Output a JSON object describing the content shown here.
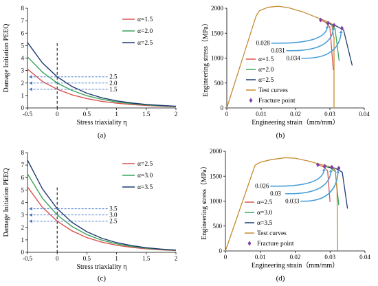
{
  "chart_data": [
    {
      "panel_label": "(a)",
      "type": "line",
      "xlabel": "Stress triaxiality η",
      "ylabel": "Damage Initiation PEEQ",
      "xlim": [
        -0.5,
        2
      ],
      "ylim": [
        0,
        8
      ],
      "xticks": [
        "-0.5",
        "0",
        "0.5",
        "1",
        "1.5",
        "2"
      ],
      "yticks": [
        "0",
        "1",
        "2",
        "3",
        "4",
        "5",
        "6",
        "7",
        "8"
      ],
      "x": [
        -0.5,
        -0.25,
        0,
        0.25,
        0.5,
        0.75,
        1.0,
        1.25,
        1.5,
        1.75,
        2.0
      ],
      "series": [
        {
          "name": "α=1.5",
          "color": "#d9534f",
          "values": [
            3.12,
            2.13,
            1.5,
            1.05,
            0.75,
            0.53,
            0.38,
            0.27,
            0.2,
            0.14,
            0.1
          ]
        },
        {
          "name": "α=2.0",
          "color": "#3aa35a",
          "values": [
            4.1,
            2.88,
            2.0,
            1.4,
            0.98,
            0.69,
            0.48,
            0.34,
            0.24,
            0.17,
            0.12
          ]
        },
        {
          "name": "α=2.5",
          "color": "#1f3a6e",
          "values": [
            5.25,
            3.62,
            2.5,
            1.72,
            1.18,
            0.82,
            0.57,
            0.4,
            0.28,
            0.2,
            0.14
          ]
        }
      ],
      "markers": [
        {
          "label": "2.5",
          "y": 2.5
        },
        {
          "label": "2.0",
          "y": 2.0
        },
        {
          "label": "1.5",
          "y": 1.5
        }
      ],
      "legend": "top-right",
      "vline_x": 0
    },
    {
      "panel_label": "(b)",
      "type": "line",
      "xlabel": "Engineering strain（mm/mm）",
      "ylabel": "Engineering stress（MPa）",
      "xlim": [
        0,
        0.04
      ],
      "ylim": [
        0,
        2000
      ],
      "xticks": [
        "0",
        "0.01",
        "0.02",
        "0.03",
        "0.04"
      ],
      "yticks": [
        "0",
        "500",
        "1000",
        "1500",
        "2000"
      ],
      "series": [
        {
          "name": "α=1.5",
          "color": "#d9534f",
          "points": [
            [
              0.0273,
              1765
            ],
            [
              0.0287,
              1720
            ],
            [
              0.03,
              1620
            ],
            [
              0.031,
              760
            ]
          ]
        },
        {
          "name": "α=2.0",
          "color": "#3aa35a",
          "points": [
            [
              0.0286,
              1725
            ],
            [
              0.03,
              1690
            ],
            [
              0.0315,
              1590
            ],
            [
              0.0327,
              940
            ]
          ]
        },
        {
          "name": "α=2.5",
          "color": "#1f3a6e",
          "points": [
            [
              0.03,
              1690
            ],
            [
              0.032,
              1640
            ],
            [
              0.034,
              1560
            ],
            [
              0.0365,
              850
            ]
          ]
        },
        {
          "name": "Test curves",
          "color": "#c58a2e",
          "points": [
            [
              0,
              0
            ],
            [
              0.0085,
              1840
            ],
            [
              0.0095,
              1950
            ],
            [
              0.012,
              2020
            ],
            [
              0.015,
              2040
            ],
            [
              0.018,
              2010
            ],
            [
              0.022,
              1930
            ],
            [
              0.026,
              1820
            ],
            [
              0.029,
              1740
            ],
            [
              0.0305,
              1690
            ],
            [
              0.0312,
              1400
            ],
            [
              0.0312,
              0
            ]
          ]
        }
      ],
      "fracture_points": [
        [
          0.0273,
          1765
        ],
        [
          0.0295,
          1700
        ],
        [
          0.0312,
          1660
        ],
        [
          0.0335,
          1600
        ]
      ],
      "fracture_label": "Fracture point",
      "annotations": [
        {
          "text": "0.028"
        },
        {
          "text": "0.031"
        },
        {
          "text": "0.034"
        }
      ],
      "legend": "center"
    },
    {
      "panel_label": "(c)",
      "type": "line",
      "xlabel": "Stress triaxiality η",
      "ylabel": "Damage Initiation PEEQ",
      "xlim": [
        -0.5,
        2
      ],
      "ylim": [
        0,
        8
      ],
      "xticks": [
        "-0.5",
        "0",
        "0.5",
        "1",
        "1.5",
        "2"
      ],
      "yticks": [
        "0",
        "1",
        "2",
        "3",
        "4",
        "5",
        "6",
        "7",
        "8"
      ],
      "x": [
        -0.5,
        -0.25,
        0,
        0.25,
        0.5,
        0.75,
        1.0,
        1.25,
        1.5,
        1.75,
        2.0
      ],
      "series": [
        {
          "name": "α=2.5",
          "color": "#d9534f",
          "values": [
            5.25,
            3.62,
            2.5,
            1.72,
            1.18,
            0.82,
            0.57,
            0.4,
            0.28,
            0.2,
            0.14
          ]
        },
        {
          "name": "α=3.0",
          "color": "#3aa35a",
          "values": [
            6.3,
            4.35,
            3.0,
            2.07,
            1.42,
            0.98,
            0.68,
            0.47,
            0.33,
            0.23,
            0.16
          ]
        },
        {
          "name": "α=3.5",
          "color": "#1f3a6e",
          "values": [
            7.4,
            5.1,
            3.5,
            2.4,
            1.65,
            1.13,
            0.78,
            0.54,
            0.37,
            0.26,
            0.18
          ]
        }
      ],
      "markers": [
        {
          "label": "3.5",
          "y": 3.5
        },
        {
          "label": "3.0",
          "y": 3.0
        },
        {
          "label": "2.5",
          "y": 2.5
        }
      ],
      "legend": "top-right",
      "vline_x": 0
    },
    {
      "panel_label": "(d)",
      "type": "line",
      "xlabel": "Engineering strain（mm/mm）",
      "ylabel": "Engineering stress（MPa）",
      "xlim": [
        0,
        0.04
      ],
      "ylim": [
        0,
        2000
      ],
      "xticks": [
        "0",
        "0.01",
        "0.02",
        "0.03",
        "0.04"
      ],
      "yticks": [
        "0",
        "500",
        "1000",
        "1500",
        "2000"
      ],
      "series": [
        {
          "name": "α=2.5",
          "color": "#d9534f",
          "points": [
            [
              0.0265,
              1730
            ],
            [
              0.028,
              1690
            ],
            [
              0.0293,
              1610
            ],
            [
              0.03,
              980
            ]
          ]
        },
        {
          "name": "α=3.0",
          "color": "#3aa35a",
          "points": [
            [
              0.028,
              1700
            ],
            [
              0.03,
              1670
            ],
            [
              0.0315,
              1590
            ],
            [
              0.0325,
              920
            ]
          ]
        },
        {
          "name": "α=3.5",
          "color": "#1f3a6e",
          "points": [
            [
              0.0295,
              1680
            ],
            [
              0.0315,
              1660
            ],
            [
              0.0335,
              1580
            ],
            [
              0.035,
              850
            ]
          ]
        },
        {
          "name": "Test curves",
          "color": "#c58a2e",
          "points": [
            [
              0,
              0
            ],
            [
              0.0085,
              1720
            ],
            [
              0.01,
              1780
            ],
            [
              0.013,
              1830
            ],
            [
              0.017,
              1870
            ],
            [
              0.02,
              1860
            ],
            [
              0.024,
              1800
            ],
            [
              0.027,
              1740
            ],
            [
              0.03,
              1690
            ],
            [
              0.0315,
              1620
            ],
            [
              0.032,
              1200
            ],
            [
              0.0322,
              0
            ]
          ]
        }
      ],
      "fracture_points": [
        [
          0.0265,
          1730
        ],
        [
          0.0285,
          1700
        ],
        [
          0.0305,
          1680
        ],
        [
          0.0325,
          1660
        ]
      ],
      "fracture_label": "Fracture point",
      "annotations": [
        {
          "text": "0.026"
        },
        {
          "text": "0.03"
        },
        {
          "text": "0.033"
        }
      ],
      "legend": "center"
    }
  ]
}
